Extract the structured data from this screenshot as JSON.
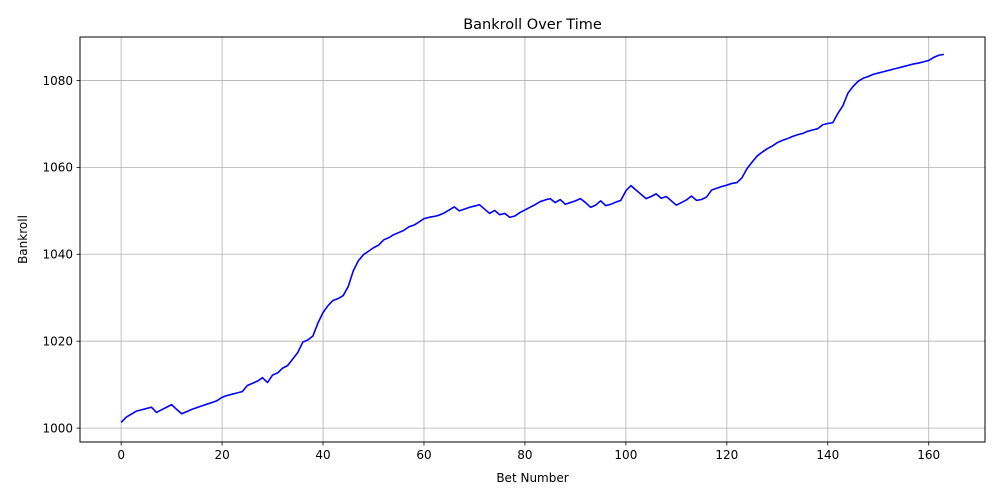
{
  "chart_data": {
    "type": "line",
    "title": "Bankroll Over Time",
    "xlabel": "Bet Number",
    "ylabel": "Bankroll",
    "xlim": [
      -8.15,
      171.15
    ],
    "ylim": [
      996.8,
      1090.0
    ],
    "xticks": [
      0,
      20,
      40,
      60,
      80,
      100,
      120,
      140,
      160
    ],
    "yticks": [
      1000,
      1020,
      1040,
      1060,
      1080
    ],
    "grid": true,
    "line_color": "#0000ff",
    "series": [
      {
        "x": [
          0,
          1,
          2,
          3,
          4,
          5,
          6,
          7,
          8,
          9,
          10,
          11,
          12,
          13,
          14,
          15,
          16,
          17,
          18,
          19,
          20,
          21,
          22,
          23,
          24,
          25,
          26,
          27,
          28,
          29,
          30,
          31,
          32,
          33,
          34,
          35,
          36,
          37,
          38,
          39,
          40,
          41,
          42,
          43,
          44,
          45,
          46,
          47,
          48,
          49,
          50,
          51,
          52,
          53,
          54,
          55,
          56,
          57,
          58,
          59,
          60,
          61,
          62,
          63,
          64,
          65,
          66,
          67,
          68,
          69,
          70,
          71,
          72,
          73,
          74,
          75,
          76,
          77,
          78,
          79,
          80,
          81,
          82,
          83,
          84,
          85,
          86,
          87,
          88,
          89,
          90,
          91,
          92,
          93,
          94,
          95,
          96,
          97,
          98,
          99,
          100,
          101,
          102,
          103,
          104,
          105,
          106,
          107,
          108,
          109,
          110,
          111,
          112,
          113,
          114,
          115,
          116,
          117,
          118,
          119,
          120,
          121,
          122,
          123,
          124,
          125,
          126,
          127,
          128,
          129,
          130,
          131,
          132,
          133,
          134,
          135,
          136,
          137,
          138,
          139,
          140,
          141,
          142,
          143,
          144,
          145,
          146,
          147,
          148,
          149,
          150,
          151,
          152,
          153,
          154,
          155,
          156,
          157,
          158,
          159,
          160,
          161,
          162,
          163
        ],
        "values": [
          1001.3,
          1002.5,
          1003.2,
          1003.9,
          1004.2,
          1004.5,
          1004.8,
          1003.6,
          1004.2,
          1004.8,
          1005.4,
          1004.3,
          1003.3,
          1003.8,
          1004.3,
          1004.7,
          1005.1,
          1005.5,
          1005.9,
          1006.3,
          1007.1,
          1007.5,
          1007.8,
          1008.1,
          1008.4,
          1009.8,
          1010.3,
          1010.8,
          1011.6,
          1010.5,
          1012.2,
          1012.7,
          1013.8,
          1014.4,
          1015.9,
          1017.4,
          1019.8,
          1020.3,
          1021.2,
          1024.2,
          1026.6,
          1028.2,
          1029.4,
          1029.8,
          1030.5,
          1032.6,
          1036.2,
          1038.5,
          1039.9,
          1040.7,
          1041.5,
          1042.1,
          1043.3,
          1043.8,
          1044.5,
          1045.0,
          1045.5,
          1046.3,
          1046.7,
          1047.4,
          1048.2,
          1048.5,
          1048.7,
          1049.0,
          1049.5,
          1050.2,
          1050.9,
          1050.0,
          1050.4,
          1050.8,
          1051.1,
          1051.4,
          1050.4,
          1049.4,
          1050.1,
          1049.1,
          1049.4,
          1048.5,
          1048.8,
          1049.6,
          1050.2,
          1050.8,
          1051.4,
          1052.1,
          1052.5,
          1052.8,
          1051.9,
          1052.6,
          1051.5,
          1051.9,
          1052.3,
          1052.8,
          1051.9,
          1050.8,
          1051.3,
          1052.3,
          1051.2,
          1051.5,
          1052.0,
          1052.4,
          1054.6,
          1055.8,
          1054.8,
          1053.8,
          1052.8,
          1053.3,
          1053.9,
          1052.9,
          1053.3,
          1052.3,
          1051.3,
          1051.9,
          1052.5,
          1053.4,
          1052.4,
          1052.6,
          1053.2,
          1054.8,
          1055.2,
          1055.6,
          1055.9,
          1056.3,
          1056.5,
          1057.6,
          1059.7,
          1061.2,
          1062.6,
          1063.5,
          1064.3,
          1064.9,
          1065.7,
          1066.2,
          1066.6,
          1067.1,
          1067.5,
          1067.8,
          1068.3,
          1068.6,
          1068.9,
          1069.8,
          1070.1,
          1070.3,
          1072.4,
          1074.2,
          1077.1,
          1078.6,
          1079.8,
          1080.5,
          1080.9,
          1081.4,
          1081.7,
          1082.0,
          1082.3,
          1082.6,
          1082.9,
          1083.2,
          1083.5,
          1083.8,
          1084.0,
          1084.3,
          1084.6,
          1085.3,
          1085.8,
          1086.0
        ]
      }
    ]
  }
}
